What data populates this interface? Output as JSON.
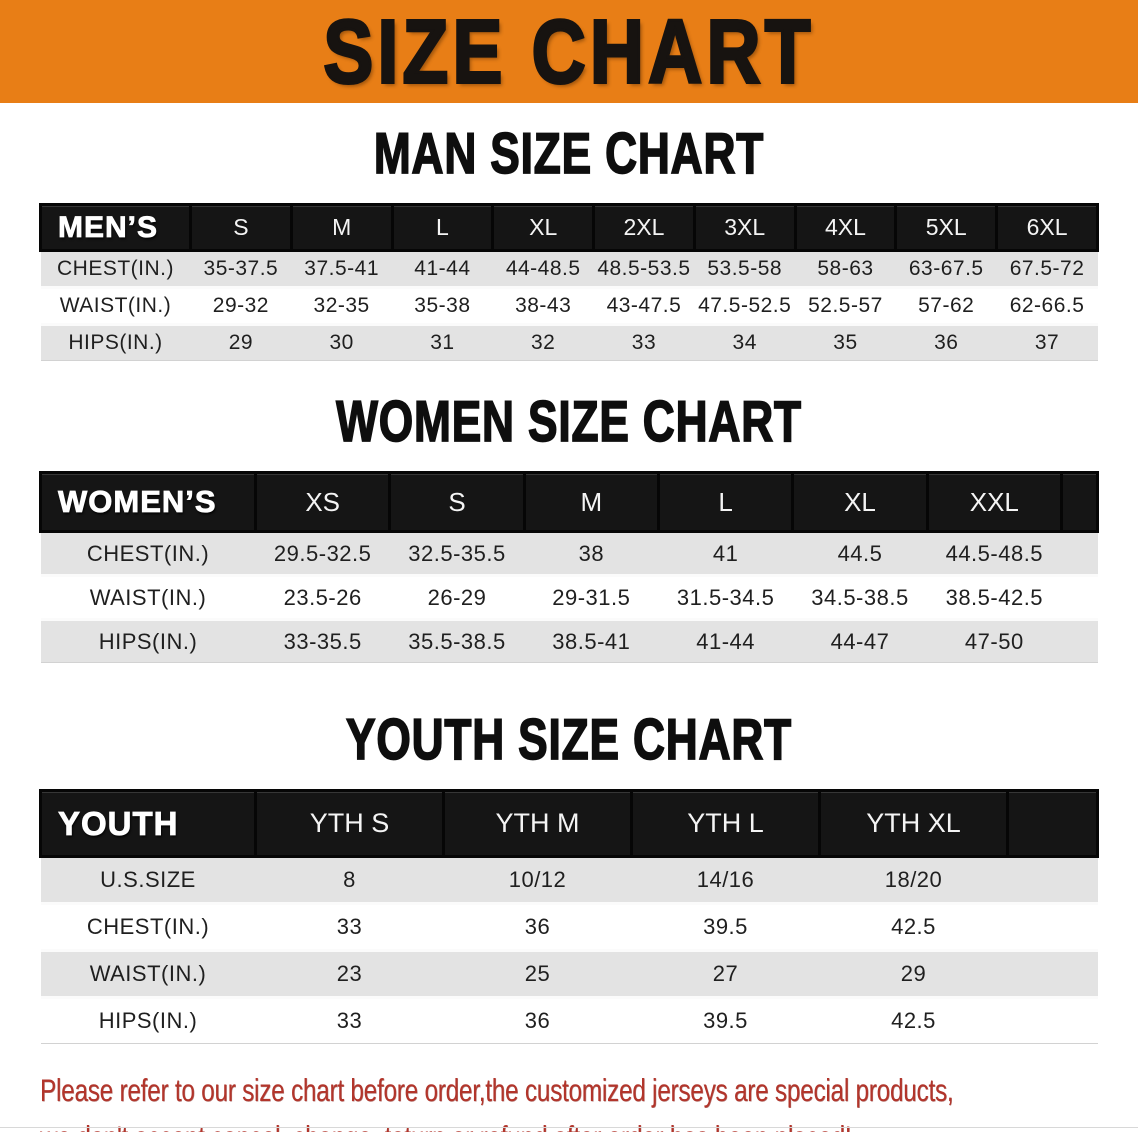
{
  "banner": {
    "title": "SIZE CHART",
    "bg_color": "#e87e16",
    "text_color": "#171310"
  },
  "colors": {
    "header_bar": "#151515",
    "row_alt_gray": "#e3e3e3",
    "disclaimer_red": "#b2352b"
  },
  "sections": [
    {
      "id": "men",
      "title": "MAN SIZE CHART",
      "header_label": "MEN’S",
      "columns": [
        "S",
        "M",
        "L",
        "XL",
        "2XL",
        "3XL",
        "4XL",
        "5XL",
        "6XL"
      ],
      "rows": [
        {
          "label": "CHEST(IN.)",
          "values": [
            "35-37.5",
            "37.5-41",
            "41-44",
            "44-48.5",
            "48.5-53.5",
            "53.5-58",
            "58-63",
            "63-67.5",
            "67.5-72"
          ]
        },
        {
          "label": "WAIST(IN.)",
          "values": [
            "29-32",
            "32-35",
            "35-38",
            "38-43",
            "43-47.5",
            "47.5-52.5",
            "52.5-57",
            "57-62",
            "62-66.5"
          ]
        },
        {
          "label": "HIPS(IN.)",
          "values": [
            "29",
            "30",
            "31",
            "32",
            "33",
            "34",
            "35",
            "36",
            "37"
          ]
        }
      ]
    },
    {
      "id": "women",
      "title": "WOMEN SIZE CHART",
      "header_label": "WOMEN’S",
      "columns": [
        "XS",
        "S",
        "M",
        "L",
        "XL",
        "XXL"
      ],
      "rows": [
        {
          "label": "CHEST(IN.)",
          "values": [
            "29.5-32.5",
            "32.5-35.5",
            "38",
            "41",
            "44.5",
            "44.5-48.5"
          ]
        },
        {
          "label": "WAIST(IN.)",
          "values": [
            "23.5-26",
            "26-29",
            "29-31.5",
            "31.5-34.5",
            "34.5-38.5",
            "38.5-42.5"
          ]
        },
        {
          "label": "HIPS(IN.)",
          "values": [
            "33-35.5",
            "35.5-38.5",
            "38.5-41",
            "41-44",
            "44-47",
            "47-50"
          ]
        }
      ]
    },
    {
      "id": "youth",
      "title": "YOUTH SIZE CHART",
      "header_label": "YOUTH",
      "columns": [
        "YTH S",
        "YTH M",
        "YTH L",
        "YTH XL"
      ],
      "rows": [
        {
          "label": "U.S.SIZE",
          "values": [
            "8",
            "10/12",
            "14/16",
            "18/20"
          ]
        },
        {
          "label": "CHEST(IN.)",
          "values": [
            "33",
            "36",
            "39.5",
            "42.5"
          ]
        },
        {
          "label": "WAIST(IN.)",
          "values": [
            "23",
            "25",
            "27",
            "29"
          ]
        },
        {
          "label": "HIPS(IN.)",
          "values": [
            "33",
            "36",
            "39.5",
            "42.5"
          ]
        }
      ]
    }
  ],
  "disclaimer": {
    "lines": [
      "Please refer to our size chart before order,the customized jerseys are special products,",
      "we don't accept cancel, change, teturn or refund after order has been placed!"
    ]
  }
}
